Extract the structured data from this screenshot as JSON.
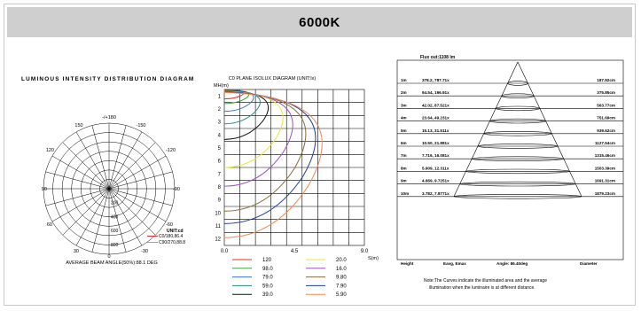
{
  "header": {
    "title": "6000K"
  },
  "polar": {
    "title": "LUMINOUS INTENSITY DISTRIBUTION DIAGRAM",
    "angle_labels": [
      "-/+180",
      "150",
      "-150",
      "120",
      "-120",
      "90",
      "-90",
      "60",
      "-60",
      "30",
      "-30",
      "0"
    ],
    "radial_ticks": [
      "200",
      "400",
      "600",
      "800"
    ],
    "unit": "UNIT:cd",
    "legend": [
      {
        "label": "C0/180,86.4",
        "color": "#e03030"
      },
      {
        "label": "C90/270,88.8",
        "color": "#c8a030"
      }
    ],
    "beam_note": "AVERAGE BEAM ANGLE(50%):88.1 DEG"
  },
  "isolux": {
    "title": "C0 PLANE ISOLUX DIAGRAM (UNIT:lx)",
    "y_axis_label": "MH(m)",
    "x_axis_label": "S(m)",
    "y_ticks": [
      "1",
      "2",
      "3",
      "4",
      "5",
      "6",
      "7",
      "8",
      "9",
      "10",
      "11",
      "12"
    ],
    "x_ticks": [
      "0.0",
      "4.5",
      "9.0"
    ],
    "legend": [
      {
        "label": "120",
        "color": "#e03030"
      },
      {
        "label": "20.0",
        "color": "#e8e838"
      },
      {
        "label": "98.0",
        "color": "#3aa63a"
      },
      {
        "label": "16.0",
        "color": "#a050c0"
      },
      {
        "label": "79.0",
        "color": "#3a78d0"
      },
      {
        "label": "9.80",
        "color": "#8a6a3a"
      },
      {
        "label": "59.0",
        "color": "#2a8a8a"
      },
      {
        "label": "7.90",
        "color": "#1f3f9f"
      },
      {
        "label": "39.0",
        "color": "#101010"
      },
      {
        "label": "5.90",
        "color": "#f08a58"
      }
    ]
  },
  "cone": {
    "flux": "Flux out:1108 lm",
    "rows": [
      {
        "height": "1m",
        "value": "378.2, 787.71x",
        "diameter": "187.92cm"
      },
      {
        "height": "2m",
        "value": "94.54, 196.91x",
        "diameter": "375.85cm"
      },
      {
        "height": "3m",
        "value": "42.02, 87.521x",
        "diameter": "563.77cm"
      },
      {
        "height": "4m",
        "value": "23.64, 49.231x",
        "diameter": "751.69cm"
      },
      {
        "height": "5m",
        "value": "15.13, 31.511x",
        "diameter": "939.62cm"
      },
      {
        "height": "6m",
        "value": "10.50, 21.881x",
        "diameter": "1127.54cm"
      },
      {
        "height": "7m",
        "value": "7.716, 16.081x",
        "diameter": "1315.46cm"
      },
      {
        "height": "8m",
        "value": "5.909, 12.311x",
        "diameter": "1503.39cm"
      },
      {
        "height": "9m",
        "value": "4.669, 9.7251x",
        "diameter": "1691.31cm"
      },
      {
        "height": "10m",
        "value": "3.782, 7.8771x",
        "diameter": "1879.23cm"
      }
    ],
    "footer": {
      "height": "Height",
      "value": "Eavg, Emax",
      "angle": "Angle: 86.40deg",
      "diameter": "Diameter"
    },
    "note_line1": "Note:The Curves indicate the illuminated area and the average",
    "note_line2": "illumination when the luminaire is at different distance."
  }
}
